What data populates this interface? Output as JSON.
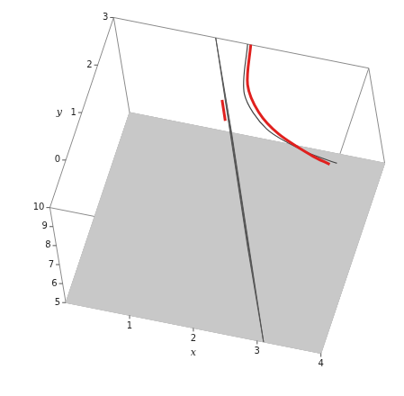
{
  "chart_data": {
    "type": "surface3d",
    "xlabel": "x",
    "ylabel": "y",
    "xlim": [
      0,
      4
    ],
    "ylim": [
      -1,
      3
    ],
    "zlim": [
      5,
      10
    ],
    "xticks": [
      1,
      2,
      3,
      4
    ],
    "yticks": [
      0,
      1,
      2,
      3
    ],
    "zticks": [
      5,
      6,
      7,
      8,
      9,
      10
    ],
    "series": [
      {
        "type": "polygon",
        "color": "#c8c8c8",
        "x": [
          0,
          4,
          4,
          0
        ],
        "y": [
          -1,
          -1,
          3,
          3
        ],
        "z": [
          5,
          5,
          5,
          5
        ]
      },
      {
        "type": "polygon",
        "color": "#555555",
        "x": [
          3.1,
          1.6,
          1.6,
          3.1
        ],
        "y": [
          -1,
          3,
          3,
          -1
        ],
        "z": [
          5,
          5,
          10,
          10
        ]
      },
      {
        "type": "line",
        "color": "#444444",
        "x": [
          2.1,
          2.3,
          2.8,
          3.5,
          4.0
        ],
        "y": [
          3.0,
          2.0,
          1.4,
          1.1,
          1.0
        ],
        "z": [
          10,
          10,
          10,
          10,
          10
        ]
      },
      {
        "type": "line",
        "color": "#e0201e",
        "x": [
          2.15,
          2.3,
          2.6,
          3.0,
          3.6,
          3.9
        ],
        "y": [
          3.0,
          2.2,
          1.7,
          1.35,
          1.05,
          0.95
        ],
        "z": [
          10,
          10,
          10,
          10,
          10,
          10
        ]
      },
      {
        "type": "line",
        "color": "#e0201e",
        "x": [
          2.0,
          2.15
        ],
        "y": [
          1.8,
          1.4
        ],
        "z": [
          10,
          10
        ]
      }
    ]
  }
}
